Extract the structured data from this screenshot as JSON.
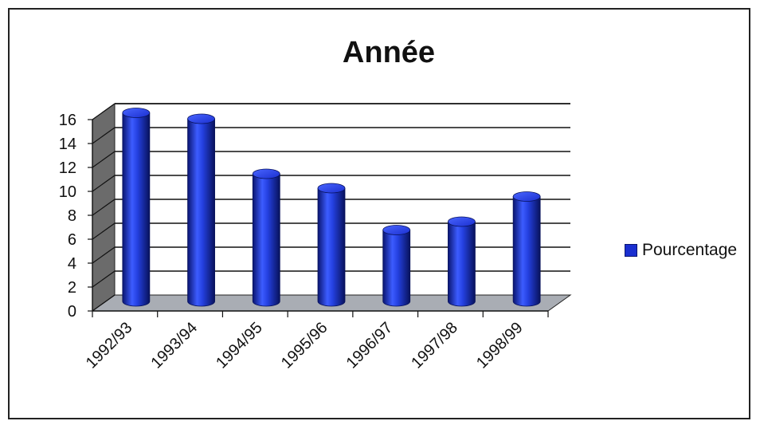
{
  "chart_data": {
    "type": "bar",
    "title": "Année",
    "categories": [
      "1992/93",
      "1993/94",
      "1994/95",
      "1995/96",
      "1996/97",
      "1997/98",
      "1998/99"
    ],
    "series": [
      {
        "name": "Pourcentage",
        "values": [
          15.9,
          15.4,
          10.8,
          9.6,
          6.1,
          6.8,
          8.9
        ],
        "color": "#1a2fd0"
      }
    ],
    "ylim": [
      0,
      16
    ],
    "yticks": [
      0,
      2,
      4,
      6,
      8,
      10,
      12,
      14,
      16
    ],
    "grid": true,
    "legend_position": "right",
    "style": "3d-cylinder"
  }
}
